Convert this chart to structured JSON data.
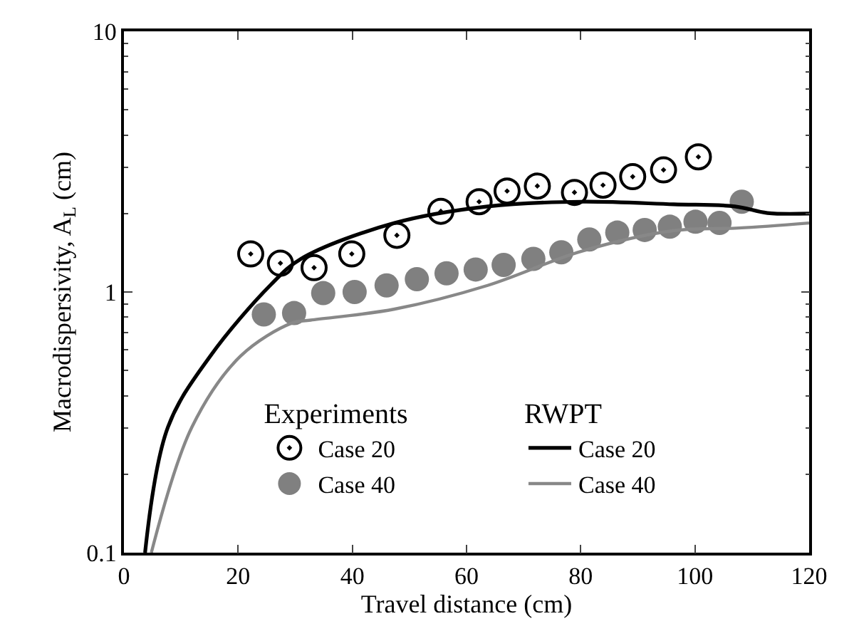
{
  "chart_data": {
    "type": "scatter",
    "xlabel": "Travel distance (cm)",
    "ylabel": "Macrodispersivity, A$_{L}$ (cm)",
    "log": "y",
    "xlim": [
      0,
      120
    ],
    "xticks": [
      0,
      20,
      40,
      60,
      80,
      100,
      120
    ],
    "ylim": [
      0.1,
      10
    ],
    "yticks": [
      0.1,
      1,
      10
    ],
    "grid": false,
    "legend": "bottom",
    "annotations": [
      "Experiments",
      "RWPT"
    ],
    "series": [
      {
        "name": "Case 20",
        "marker": "circle",
        "color": "#000000",
        "x": [
          22.2,
          27.4,
          33.3,
          39.9,
          47.8,
          55.5,
          62.2,
          67.1,
          72.4,
          78.9,
          83.9,
          89.1,
          94.5,
          100.6
        ],
        "values": [
          1.4,
          1.29,
          1.24,
          1.4,
          1.65,
          2.04,
          2.22,
          2.44,
          2.55,
          2.41,
          2.57,
          2.77,
          2.94,
          3.3
        ]
      },
      {
        "name": "Case 40",
        "marker": "circle",
        "color": "#808080",
        "x": [
          24.5,
          29.8,
          34.9,
          40.4,
          46.0,
          51.3,
          56.5,
          61.6,
          66.5,
          71.7,
          76.6,
          81.5,
          86.4,
          91.2,
          95.6,
          100.1,
          104.3,
          108.2
        ],
        "values": [
          0.82,
          0.83,
          0.99,
          1.0,
          1.06,
          1.12,
          1.18,
          1.22,
          1.27,
          1.34,
          1.42,
          1.59,
          1.69,
          1.73,
          1.78,
          1.86,
          1.84,
          2.22
        ]
      },
      {
        "name": "Case 20",
        "type": "line",
        "color": "#000000",
        "x": [
          3.7,
          7.7,
          15.1,
          25.7,
          31.0,
          47.4,
          63.7,
          80,
          96.3,
          107,
          112.7,
          120
        ],
        "values": [
          0.1,
          0.303,
          0.567,
          1.065,
          1.34,
          1.84,
          2.13,
          2.22,
          2.17,
          2.13,
          2.01,
          2.0
        ]
      },
      {
        "name": "Case 40",
        "type": "line",
        "color": "#888888",
        "x": [
          4.8,
          11.9,
          20.4,
          29.4,
          32.7,
          47.4,
          63.7,
          80,
          96.3,
          107.7,
          120
        ],
        "values": [
          0.1,
          0.303,
          0.567,
          0.76,
          0.78,
          0.86,
          1.06,
          1.43,
          1.72,
          1.76,
          1.84
        ]
      }
    ]
  }
}
